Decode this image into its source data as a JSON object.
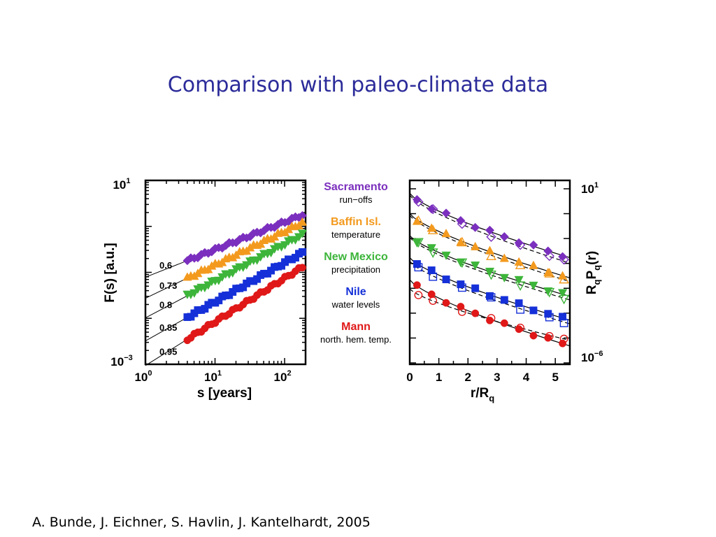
{
  "slide": {
    "title": "Comparison with paleo-climate data",
    "citation": "A. Bunde, J. Eichner, S. Havlin, J. Kantelhardt, 2005"
  },
  "legend": [
    {
      "name": "Sacramento",
      "sub": "run−offs",
      "color": "#7b2fbe"
    },
    {
      "name": "Baffin Isl.",
      "sub": "temperature",
      "color": "#f39a1e"
    },
    {
      "name": "New Mexico",
      "sub": "precipitation",
      "color": "#3db53a"
    },
    {
      "name": "Nile",
      "sub": "water levels",
      "color": "#1530d8"
    },
    {
      "name": "Mann",
      "sub": "north. hem. temp.",
      "color": "#e01818"
    }
  ],
  "chart_data": [
    {
      "type": "scatter",
      "xlabel": "s [years]",
      "ylabel": "F(s) [a.u.]",
      "xscale": "log",
      "yscale": "log",
      "xlim": [
        1,
        200
      ],
      "ylim": [
        0.001,
        10
      ],
      "x_tick_labels": [
        {
          "base": "10",
          "exp": "0"
        },
        {
          "base": "10",
          "exp": "1"
        },
        {
          "base": "10",
          "exp": "2"
        }
      ],
      "y_tick_labels": [
        {
          "base": "10",
          "exp": "1"
        },
        {
          "base": "10",
          "exp": "−3"
        }
      ],
      "fit_labels": [
        "0.6",
        "0.73",
        "0.8",
        "0.85",
        "0.95"
      ],
      "series": [
        {
          "color": "#7b2fbe",
          "marker": "diamond",
          "slope": 0.6,
          "y_at_s4": 0.18,
          "y_at_s180": 1.8
        },
        {
          "color": "#f39a1e",
          "marker": "triangle-up",
          "slope": 0.73,
          "y_at_s4": 0.075,
          "y_at_s180": 1.02
        },
        {
          "color": "#3db53a",
          "marker": "triangle-down",
          "slope": 0.8,
          "y_at_s4": 0.031,
          "y_at_s180": 0.59
        },
        {
          "color": "#1530d8",
          "marker": "square",
          "slope": 0.85,
          "y_at_s4": 0.0105,
          "y_at_s180": 0.26
        },
        {
          "color": "#e01818",
          "marker": "circle",
          "slope": 0.95,
          "y_at_s4": 0.0035,
          "y_at_s180": 0.13
        }
      ]
    },
    {
      "type": "scatter",
      "xlabel": "r/R",
      "xlabel_sub": "q",
      "ylabel": "R",
      "ylabel_parts": [
        "R",
        "q",
        "P",
        "q",
        "(r)"
      ],
      "yscale": "log",
      "xlim": [
        0,
        5.5
      ],
      "x_ticks": [
        0,
        1,
        2,
        3,
        4,
        5
      ],
      "y_tick_labels": [
        {
          "base": "10",
          "exp": "1"
        },
        {
          "base": "10",
          "exp": "−6"
        }
      ],
      "r_values": [
        0.25,
        0.75,
        1.25,
        1.75,
        2.25,
        2.75,
        3.25,
        3.75,
        4.25,
        4.75,
        5.25
      ],
      "series": [
        {
          "color": "#7b2fbe",
          "marker": "diamond",
          "start_top": 0.07,
          "end_top": 0.42,
          "start_bottom": 0.08,
          "end_bottom": 0.45
        },
        {
          "color": "#f39a1e",
          "marker": "triangle-up",
          "start_top": 0.18,
          "end_top": 0.53,
          "start_bottom": 0.19,
          "end_bottom": 0.55
        },
        {
          "color": "#3db53a",
          "marker": "triangle-down",
          "start_top": 0.3,
          "end_top": 0.63,
          "start_bottom": 0.31,
          "end_bottom": 0.65
        },
        {
          "color": "#1530d8",
          "marker": "square",
          "start_top": 0.42,
          "end_top": 0.76,
          "start_bottom": 0.44,
          "end_bottom": 0.78
        },
        {
          "color": "#e01818",
          "marker": "circle",
          "start_top": 0.54,
          "end_top": 0.9,
          "start_bottom": 0.59,
          "end_bottom": 0.87
        }
      ]
    }
  ]
}
